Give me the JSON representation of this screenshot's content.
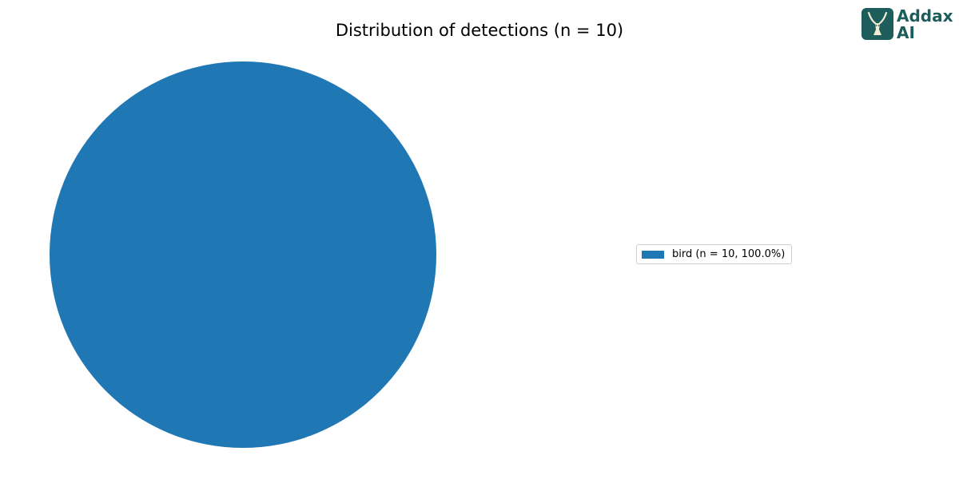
{
  "logo": {
    "line1": "Addax",
    "line2": "AI",
    "color": "#1d5e5c",
    "icon": "antelope-icon"
  },
  "chart_data": {
    "type": "pie",
    "title": "Distribution of detections (n = 10)",
    "slices": [
      {
        "label": "bird",
        "value": 10,
        "percent": 100.0,
        "color": "#1f77b4"
      }
    ],
    "legend": {
      "position": "right",
      "entries": [
        "bird (n = 10, 100.0%)"
      ]
    }
  }
}
